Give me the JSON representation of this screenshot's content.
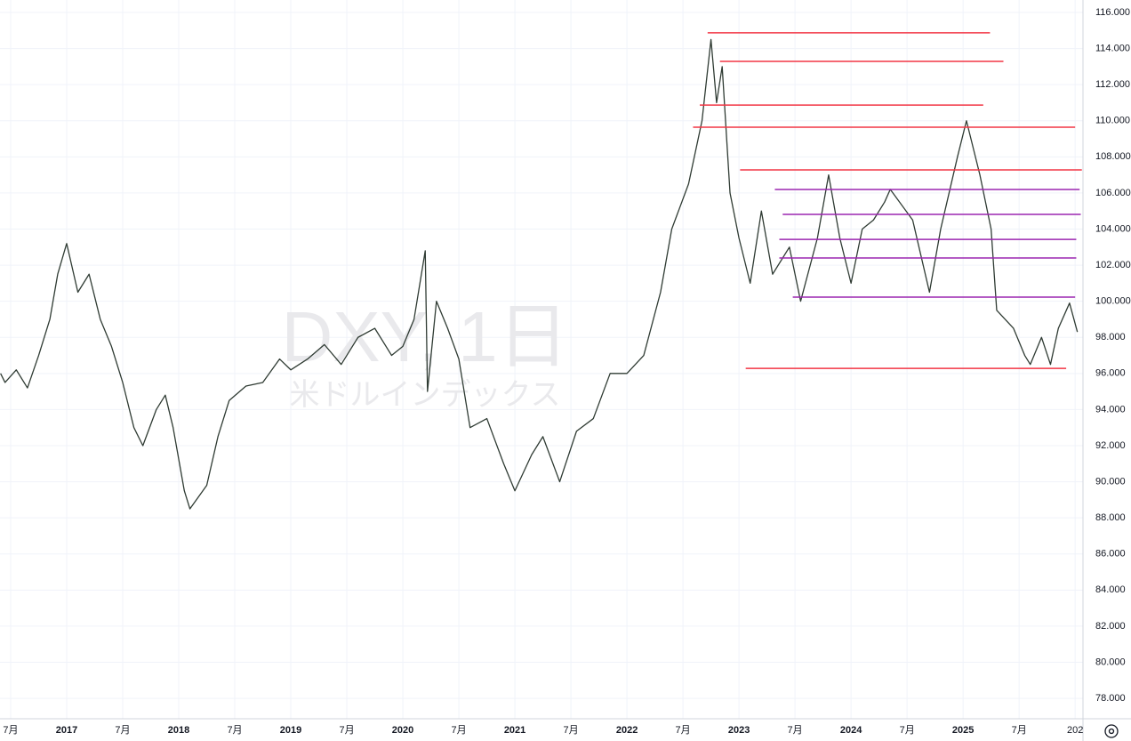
{
  "chart_data": {
    "type": "line",
    "watermark": "DXY, 1日",
    "watermark_subtitle": "米ドルインデックス",
    "color": "#2f3b33",
    "x": [
      2016.41,
      2016.45,
      2016.55,
      2016.65,
      2016.75,
      2016.85,
      2016.92,
      2017.0,
      2017.1,
      2017.2,
      2017.3,
      2017.4,
      2017.5,
      2017.6,
      2017.68,
      2017.8,
      2017.88,
      2017.95,
      2018.05,
      2018.1,
      2018.25,
      2018.35,
      2018.45,
      2018.6,
      2018.75,
      2018.9,
      2019.0,
      2019.15,
      2019.3,
      2019.45,
      2019.6,
      2019.75,
      2019.9,
      2020.0,
      2020.1,
      2020.2,
      2020.22,
      2020.3,
      2020.4,
      2020.5,
      2020.6,
      2020.75,
      2020.9,
      2021.0,
      2021.15,
      2021.25,
      2021.4,
      2021.55,
      2021.7,
      2021.85,
      2022.0,
      2022.15,
      2022.3,
      2022.4,
      2022.55,
      2022.67,
      2022.75,
      2022.8,
      2022.85,
      2022.92,
      2023.0,
      2023.1,
      2023.2,
      2023.3,
      2023.45,
      2023.55,
      2023.7,
      2023.8,
      2023.9,
      2024.0,
      2024.1,
      2024.2,
      2024.3,
      2024.35,
      2024.55,
      2024.7,
      2024.8,
      2024.95,
      2025.03,
      2025.15,
      2025.25,
      2025.3,
      2025.45,
      2025.55,
      2025.6,
      2025.7,
      2025.78,
      2025.85,
      2025.95,
      2026.02
    ],
    "values": [
      96.0,
      95.5,
      96.2,
      95.2,
      97.0,
      99.0,
      101.5,
      103.2,
      100.5,
      101.5,
      99.0,
      97.5,
      95.5,
      93.0,
      92.0,
      94.0,
      94.8,
      93.0,
      89.5,
      88.5,
      89.8,
      92.5,
      94.5,
      95.3,
      95.5,
      96.8,
      96.2,
      96.8,
      97.6,
      96.5,
      98.0,
      98.5,
      97.0,
      97.5,
      99.0,
      102.8,
      95.0,
      100.0,
      98.5,
      96.8,
      93.0,
      93.5,
      91.0,
      89.5,
      91.5,
      92.5,
      90.0,
      92.8,
      93.5,
      96.0,
      96.0,
      97.0,
      100.5,
      104.0,
      106.5,
      110.0,
      114.5,
      111.0,
      113.0,
      106.0,
      103.5,
      101.0,
      105.0,
      101.5,
      103.0,
      100.0,
      103.5,
      107.0,
      103.5,
      101.0,
      104.0,
      104.5,
      105.5,
      106.2,
      104.5,
      100.5,
      104.0,
      108.0,
      110.0,
      107.0,
      104.0,
      99.5,
      98.5,
      97.0,
      96.5,
      98.0,
      96.5,
      98.5,
      99.9,
      98.3
    ],
    "levels": [
      {
        "y": 114.87,
        "x": [
          2022.72,
          2025.24
        ],
        "color": "#f23645"
      },
      {
        "y": 113.29,
        "x": [
          2022.83,
          2025.36
        ],
        "color": "#f23645"
      },
      {
        "y": 110.87,
        "x": [
          2022.65,
          2025.18
        ],
        "color": "#f23645"
      },
      {
        "y": 109.64,
        "x": [
          2022.59,
          2026.0
        ],
        "color": "#f23645"
      },
      {
        "y": 107.28,
        "x": [
          2023.01,
          2026.06
        ],
        "color": "#f23645"
      },
      {
        "y": 96.28,
        "x": [
          2023.06,
          2025.92
        ],
        "color": "#f23645"
      },
      {
        "y": 106.19,
        "x": [
          2023.32,
          2026.04
        ],
        "color": "#9c27b0"
      },
      {
        "y": 104.81,
        "x": [
          2023.39,
          2026.05
        ],
        "color": "#9c27b0"
      },
      {
        "y": 103.43,
        "x": [
          2023.36,
          2026.01
        ],
        "color": "#9c27b0"
      },
      {
        "y": 102.4,
        "x": [
          2023.36,
          2026.01
        ],
        "color": "#9c27b0"
      },
      {
        "y": 100.23,
        "x": [
          2023.48,
          2026.0
        ],
        "color": "#9c27b0"
      }
    ],
    "xlim": [
      2016.405,
      2026.07
    ],
    "ylim": [
      76.87,
      116.69
    ],
    "grid": true,
    "xticks": [
      {
        "value": 2016.5,
        "label": "7月"
      },
      2017,
      {
        "value": 2017.5,
        "label": "7月"
      },
      2018,
      {
        "value": 2018.5,
        "label": "7月"
      },
      2019,
      {
        "value": 2019.5,
        "label": "7月"
      },
      2020,
      {
        "value": 2020.5,
        "label": "7月"
      },
      2021,
      {
        "value": 2021.5,
        "label": "7月"
      },
      2022,
      {
        "value": 2022.5,
        "label": "7月"
      },
      2023,
      {
        "value": 2023.5,
        "label": "7月"
      },
      2024,
      {
        "value": 2024.5,
        "label": "7月"
      },
      2025,
      {
        "value": 2025.5,
        "label": "7月"
      },
      {
        "value": 2026,
        "label": "202"
      }
    ],
    "yticks": [
      {
        "value": 78,
        "label": "78.000"
      },
      {
        "value": 80,
        "label": "80.000"
      },
      {
        "value": 82,
        "label": "82.000"
      },
      {
        "value": 84,
        "label": "84.000"
      },
      {
        "value": 86,
        "label": "86.000"
      },
      {
        "value": 88,
        "label": "88.000"
      },
      {
        "value": 90,
        "label": "90.000"
      },
      {
        "value": 92,
        "label": "92.000"
      },
      {
        "value": 94,
        "label": "94.000"
      },
      {
        "value": 96,
        "label": "96.000"
      },
      {
        "value": 98,
        "label": "98.000"
      },
      {
        "value": 100,
        "label": "100.000"
      },
      {
        "value": 102,
        "label": "102.000"
      },
      {
        "value": 104,
        "label": "104.000"
      },
      {
        "value": 106,
        "label": "106.000"
      },
      {
        "value": 108,
        "label": "108.000"
      },
      {
        "value": 110,
        "label": "110.000"
      },
      {
        "value": 112,
        "label": "112.000"
      },
      {
        "value": 114,
        "label": "114.000"
      },
      {
        "value": 116,
        "label": "116.000"
      }
    ]
  }
}
